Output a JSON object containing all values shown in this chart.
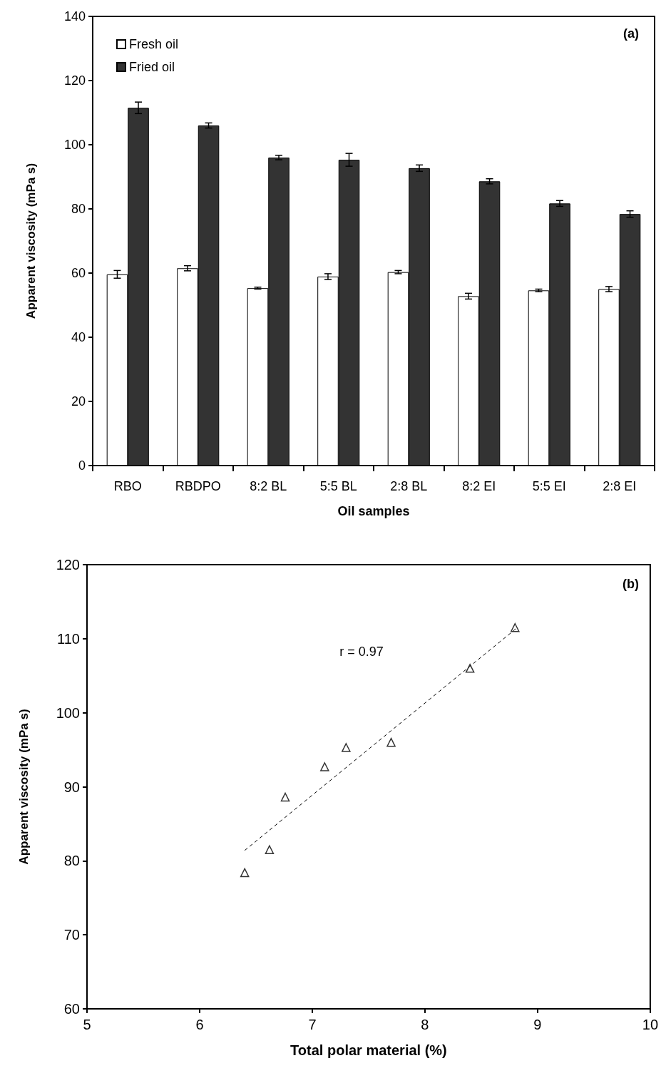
{
  "chart_data": [
    {
      "type": "bar",
      "xlabel": "Oil samples",
      "ylabel": "Apparent viscosity (mPa s)",
      "annotations": [
        "(a)"
      ],
      "categories": [
        "RBO",
        "RBDPO",
        "8:2 BL",
        "5:5 BL",
        "2:8 BL",
        "8:2 EI",
        "5:5 EI",
        "2:8 EI"
      ],
      "series": [
        {
          "name": "Fresh oil",
          "color": "#ffffff",
          "values": [
            59.6,
            61.5,
            55.3,
            58.9,
            60.3,
            52.8,
            54.6,
            55.0
          ],
          "errors": [
            1.2,
            0.8,
            0.3,
            0.9,
            0.5,
            0.9,
            0.4,
            0.8
          ]
        },
        {
          "name": "Fried oil",
          "color": "#333333",
          "values": [
            111.5,
            106.0,
            96.0,
            95.3,
            92.7,
            88.6,
            81.7,
            78.4
          ],
          "errors": [
            1.8,
            0.8,
            0.7,
            2.0,
            1.0,
            0.8,
            0.9,
            1.0
          ]
        }
      ],
      "ylim": [
        0,
        140
      ],
      "yticks": [
        0,
        20,
        40,
        60,
        80,
        100,
        120,
        140
      ],
      "grid": false,
      "legend": "top left"
    },
    {
      "type": "scatter",
      "xlabel": "Total polar material (%)",
      "ylabel": "Apparent viscosity (mPa s)",
      "annotations": [
        "(b)",
        "r = 0.97"
      ],
      "series": [
        {
          "type": "scatter",
          "color": "#000000",
          "marker": "triangle",
          "x": [
            6.4,
            6.62,
            6.76,
            7.11,
            7.3,
            7.7,
            8.4,
            8.8
          ],
          "values": [
            78.4,
            81.5,
            88.6,
            92.7,
            95.3,
            96.0,
            106.0,
            111.5
          ]
        },
        {
          "type": "line",
          "color": "#000000",
          "line_style": "dashed",
          "marker": "none",
          "x": [
            6.4,
            8.82
          ],
          "values": [
            81.4,
            111.5
          ]
        }
      ],
      "xlim": [
        5,
        10
      ],
      "xticks": [
        5,
        6,
        7,
        8,
        9,
        10
      ],
      "ylim": [
        60,
        120
      ],
      "yticks": [
        60,
        70,
        80,
        90,
        100,
        110,
        120
      ],
      "grid": false,
      "legend": false
    }
  ]
}
